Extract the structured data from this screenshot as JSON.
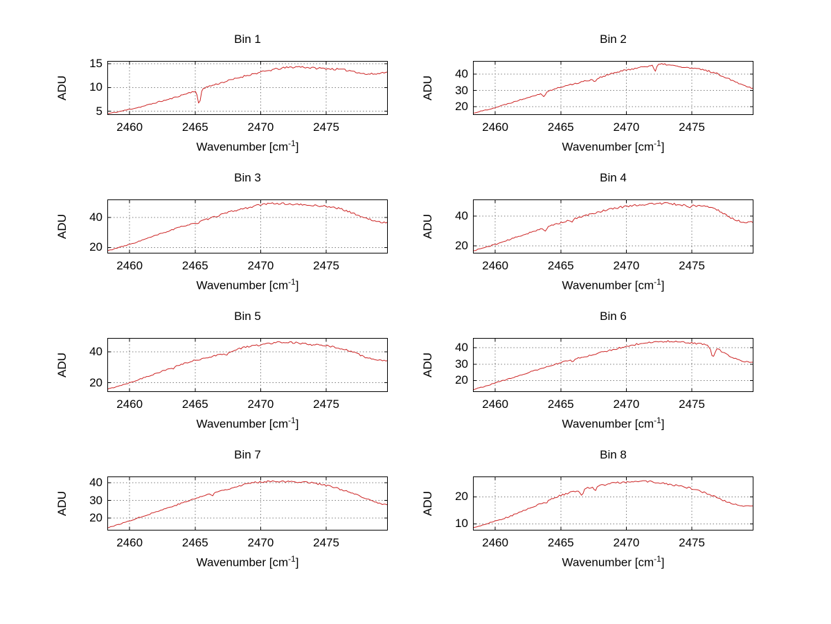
{
  "figure": {
    "background": "#ffffff",
    "line_color": "#cc2222",
    "grid_color": "#7a7a7a",
    "axis_color": "#000000"
  },
  "chart_data": [
    {
      "type": "line",
      "title": "Bin 1",
      "ylabel": "ADU",
      "xlabel": {
        "text": "Wavenumber [cm",
        "sup": "-1",
        "end": "]"
      },
      "xlim": [
        2458.3,
        2479.7
      ],
      "xticks": [
        2460,
        2465,
        2470,
        2475
      ],
      "ylim": [
        4.2,
        15.6
      ],
      "yticks": [
        5,
        10,
        15
      ],
      "grid": true,
      "legend": "none",
      "noise": 0.22,
      "seed": 11,
      "x": [
        2458,
        2459,
        2460,
        2461,
        2462,
        2463,
        2464,
        2465,
        2466,
        2467,
        2468,
        2469,
        2470,
        2471,
        2472,
        2473,
        2474,
        2475,
        2476,
        2477,
        2478,
        2479,
        2479.6
      ],
      "y": [
        4.3,
        4.8,
        5.4,
        6.0,
        6.8,
        7.5,
        8.4,
        9.3,
        10.2,
        11.0,
        11.8,
        12.6,
        13.2,
        13.8,
        14.2,
        14.4,
        14.1,
        14.0,
        13.8,
        13.5,
        12.8,
        12.9,
        13.4
      ],
      "dips": [
        [
          2465.3,
          0.15,
          3.2
        ]
      ]
    },
    {
      "type": "line",
      "title": "Bin 2",
      "ylabel": "ADU",
      "xlabel": {
        "text": "Wavenumber [cm",
        "sup": "-1",
        "end": "]"
      },
      "xlim": [
        2458.3,
        2479.7
      ],
      "xticks": [
        2460,
        2465,
        2470,
        2475
      ],
      "ylim": [
        15,
        48
      ],
      "yticks": [
        20,
        30,
        40
      ],
      "grid": true,
      "legend": "none",
      "noise": 0.55,
      "seed": 22,
      "x": [
        2458,
        2459,
        2460,
        2461,
        2462,
        2463,
        2464,
        2465,
        2466,
        2467,
        2468,
        2469,
        2470,
        2471,
        2472,
        2473,
        2474,
        2475,
        2476,
        2477,
        2478,
        2479,
        2479.6
      ],
      "y": [
        15.5,
        17.5,
        19.5,
        22.0,
        24.5,
        27.0,
        29.5,
        32.0,
        34.0,
        36.0,
        38.0,
        40.5,
        42.5,
        44.0,
        45.5,
        46.0,
        44.5,
        43.5,
        42.5,
        40.0,
        36.5,
        33.0,
        31.5
      ],
      "dips": [
        [
          2463.7,
          0.18,
          2.2
        ],
        [
          2467.6,
          0.15,
          1.8
        ],
        [
          2472.2,
          0.12,
          4.5
        ]
      ]
    },
    {
      "type": "line",
      "title": "Bin 3",
      "ylabel": "ADU",
      "xlabel": {
        "text": "Wavenumber [cm",
        "sup": "-1",
        "end": "]"
      },
      "xlim": [
        2458.3,
        2479.7
      ],
      "xticks": [
        2460,
        2465,
        2470,
        2475
      ],
      "ylim": [
        16,
        52
      ],
      "yticks": [
        20,
        40
      ],
      "grid": true,
      "legend": "none",
      "noise": 0.6,
      "seed": 33,
      "x": [
        2458,
        2459,
        2460,
        2461,
        2462,
        2463,
        2464,
        2465,
        2466,
        2467,
        2468,
        2469,
        2470,
        2471,
        2472,
        2473,
        2474,
        2475,
        2476,
        2477,
        2478,
        2479,
        2479.6
      ],
      "y": [
        17.0,
        19.5,
        22.0,
        25.0,
        28.0,
        31.0,
        34.0,
        36.5,
        39.0,
        42.0,
        44.5,
        46.5,
        48.5,
        49.5,
        49.0,
        48.5,
        48.0,
        47.5,
        46.0,
        43.0,
        39.5,
        37.0,
        36.5
      ],
      "dips": [
        [
          2465.2,
          0.15,
          1.5
        ]
      ]
    },
    {
      "type": "line",
      "title": "Bin 4",
      "ylabel": "ADU",
      "xlabel": {
        "text": "Wavenumber [cm",
        "sup": "-1",
        "end": "]"
      },
      "xlim": [
        2458.3,
        2479.7
      ],
      "xticks": [
        2460,
        2465,
        2470,
        2475
      ],
      "ylim": [
        15,
        51
      ],
      "yticks": [
        20,
        40
      ],
      "grid": true,
      "legend": "none",
      "noise": 0.7,
      "seed": 44,
      "x": [
        2458,
        2459,
        2460,
        2461,
        2462,
        2463,
        2464,
        2465,
        2466,
        2467,
        2468,
        2469,
        2470,
        2471,
        2472,
        2473,
        2474,
        2475,
        2476,
        2477,
        2478,
        2479,
        2479.6
      ],
      "y": [
        16.0,
        18.5,
        21.0,
        24.0,
        27.0,
        30.0,
        33.0,
        35.5,
        38.0,
        40.5,
        43.0,
        45.0,
        46.5,
        47.5,
        48.0,
        48.5,
        47.5,
        47.0,
        46.5,
        44.0,
        38.5,
        35.5,
        36.0
      ],
      "dips": [
        [
          2463.8,
          0.18,
          2.6
        ],
        [
          2465.9,
          0.12,
          1.6
        ],
        [
          2474.8,
          0.15,
          1.8
        ]
      ]
    },
    {
      "type": "line",
      "title": "Bin 5",
      "ylabel": "ADU",
      "xlabel": {
        "text": "Wavenumber [cm",
        "sup": "-1",
        "end": "]"
      },
      "xlim": [
        2458.3,
        2479.7
      ],
      "xticks": [
        2460,
        2465,
        2470,
        2475
      ],
      "ylim": [
        14,
        49
      ],
      "yticks": [
        20,
        40
      ],
      "grid": true,
      "legend": "none",
      "noise": 0.6,
      "seed": 55,
      "x": [
        2458,
        2459,
        2460,
        2461,
        2462,
        2463,
        2464,
        2465,
        2466,
        2467,
        2468,
        2469,
        2470,
        2471,
        2472,
        2473,
        2474,
        2475,
        2476,
        2477,
        2478,
        2479,
        2479.6
      ],
      "y": [
        15.0,
        17.5,
        20.0,
        23.0,
        26.0,
        29.0,
        32.0,
        34.5,
        36.5,
        38.5,
        41.0,
        43.5,
        44.5,
        46.0,
        46.5,
        45.5,
        44.5,
        44.0,
        42.5,
        40.0,
        36.5,
        34.5,
        34.0
      ],
      "dips": [
        [
          2463.3,
          0.12,
          1.2
        ],
        [
          2467.4,
          0.15,
          2.0
        ]
      ]
    },
    {
      "type": "line",
      "title": "Bin 6",
      "ylabel": "ADU",
      "xlabel": {
        "text": "Wavenumber [cm",
        "sup": "-1",
        "end": "]"
      },
      "xlim": [
        2458.3,
        2479.7
      ],
      "xticks": [
        2460,
        2465,
        2470,
        2475
      ],
      "ylim": [
        13,
        46
      ],
      "yticks": [
        20,
        30,
        40
      ],
      "grid": true,
      "legend": "none",
      "noise": 0.5,
      "seed": 66,
      "x": [
        2458,
        2459,
        2460,
        2461,
        2462,
        2463,
        2464,
        2465,
        2466,
        2467,
        2468,
        2469,
        2470,
        2471,
        2472,
        2473,
        2474,
        2475,
        2476,
        2477,
        2478,
        2479,
        2479.6
      ],
      "y": [
        14.0,
        16.0,
        18.5,
        21.0,
        23.5,
        26.0,
        28.5,
        31.0,
        33.0,
        35.0,
        37.0,
        39.0,
        41.0,
        42.5,
        43.5,
        44.0,
        43.5,
        43.0,
        42.0,
        39.0,
        34.5,
        31.5,
        31.0
      ],
      "dips": [
        [
          2465.9,
          0.12,
          1.5
        ],
        [
          2476.6,
          0.18,
          5.5
        ]
      ]
    },
    {
      "type": "line",
      "title": "Bin 7",
      "ylabel": "ADU",
      "xlabel": {
        "text": "Wavenumber [cm",
        "sup": "-1",
        "end": "]"
      },
      "xlim": [
        2458.3,
        2479.7
      ],
      "xticks": [
        2460,
        2465,
        2470,
        2475
      ],
      "ylim": [
        13,
        43.5
      ],
      "yticks": [
        20,
        30,
        40
      ],
      "grid": true,
      "legend": "none",
      "noise": 0.5,
      "seed": 77,
      "x": [
        2458,
        2459,
        2460,
        2461,
        2462,
        2463,
        2464,
        2465,
        2466,
        2467,
        2468,
        2469,
        2470,
        2471,
        2472,
        2473,
        2474,
        2475,
        2476,
        2477,
        2478,
        2479,
        2479.6
      ],
      "y": [
        14.0,
        16.0,
        18.5,
        21.0,
        23.5,
        26.0,
        28.5,
        31.0,
        33.5,
        35.5,
        37.5,
        39.5,
        40.5,
        41.0,
        40.5,
        40.5,
        40.0,
        38.5,
        36.5,
        34.0,
        31.0,
        28.5,
        27.5
      ],
      "dips": [
        [
          2466.3,
          0.12,
          1.8
        ]
      ]
    },
    {
      "type": "line",
      "title": "Bin 8",
      "ylabel": "ADU",
      "xlabel": {
        "text": "Wavenumber [cm",
        "sup": "-1",
        "end": "]"
      },
      "xlim": [
        2458.3,
        2479.7
      ],
      "xticks": [
        2460,
        2465,
        2470,
        2475
      ],
      "ylim": [
        7.5,
        27.5
      ],
      "yticks": [
        10,
        20
      ],
      "grid": true,
      "legend": "none",
      "noise": 0.35,
      "seed": 88,
      "x": [
        2458,
        2459,
        2460,
        2461,
        2462,
        2463,
        2464,
        2465,
        2466,
        2467,
        2468,
        2469,
        2470,
        2471,
        2472,
        2473,
        2474,
        2475,
        2476,
        2477,
        2478,
        2479,
        2479.6
      ],
      "y": [
        8.0,
        9.5,
        11.0,
        12.5,
        14.5,
        16.5,
        18.5,
        20.5,
        22.0,
        23.2,
        24.2,
        25.0,
        25.5,
        25.8,
        25.5,
        24.8,
        24.0,
        23.0,
        21.5,
        19.5,
        17.5,
        16.5,
        16.8
      ],
      "dips": [
        [
          2463.9,
          0.1,
          1.0
        ],
        [
          2466.6,
          0.15,
          2.2
        ],
        [
          2467.6,
          0.12,
          1.6
        ]
      ]
    }
  ]
}
